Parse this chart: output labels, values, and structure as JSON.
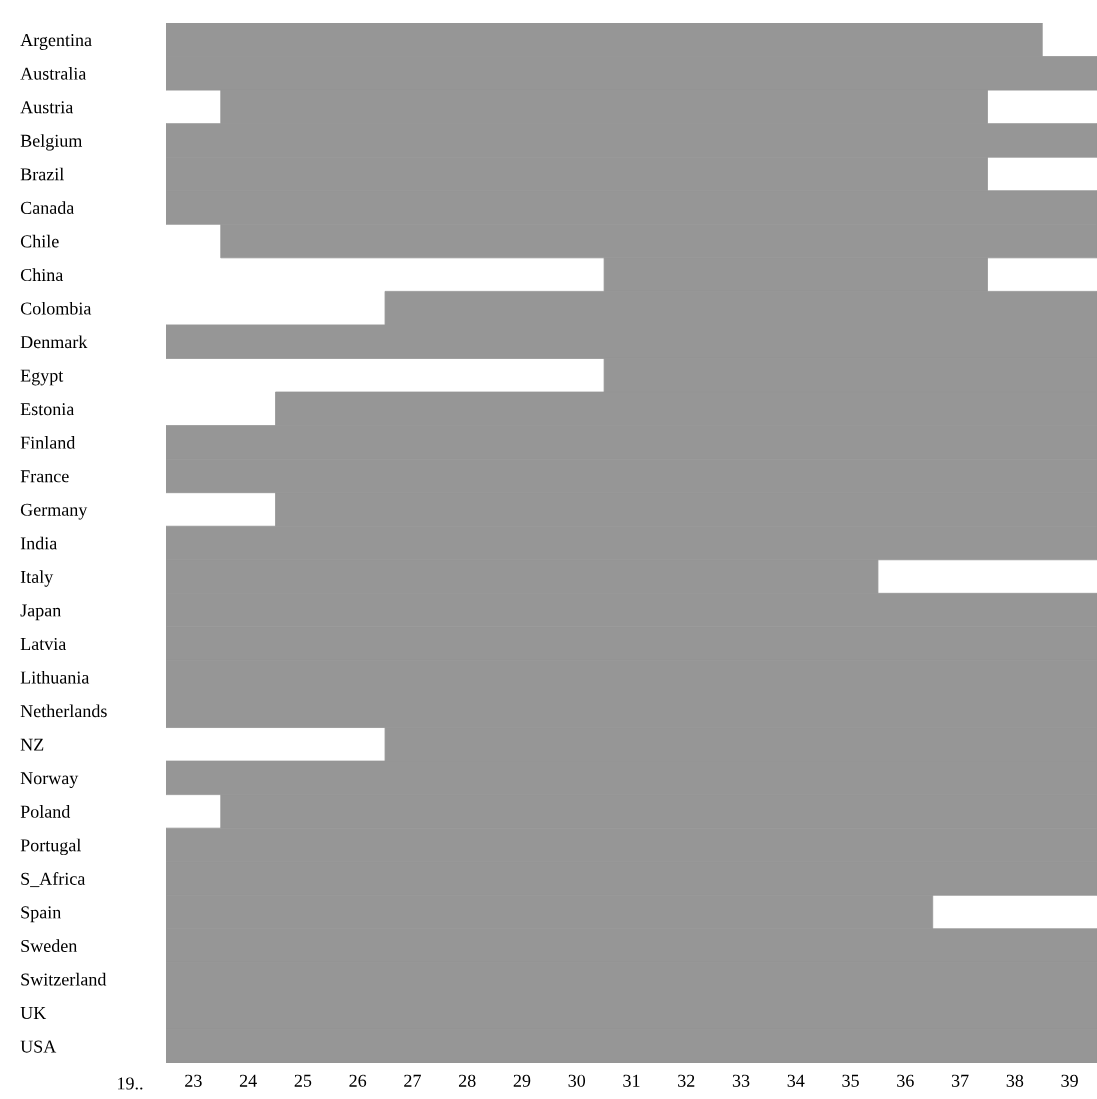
{
  "chart_data": {
    "type": "bar",
    "orientation": "horizontal",
    "color": "#969696",
    "categories": [
      "Argentina",
      "Australia",
      "Austria",
      "Belgium",
      "Brazil",
      "Canada",
      "Chile",
      "China",
      "Colombia",
      "Denmark",
      "Egypt",
      "Estonia",
      "Finland",
      "France",
      "Germany",
      "India",
      "Italy",
      "Japan",
      "Latvia",
      "Lithuania",
      "Netherlands",
      "NZ",
      "Norway",
      "Poland",
      "Portugal",
      "S_Africa",
      "Spain",
      "Sweden",
      "Switzerland",
      "UK",
      "USA"
    ],
    "base": [
      22.5,
      22.5,
      23.5,
      22.5,
      22.5,
      22.5,
      23.5,
      30.5,
      26.5,
      22.5,
      30.5,
      24.5,
      22.5,
      22.5,
      24.5,
      22.5,
      22.5,
      22.5,
      22.5,
      22.5,
      22.5,
      26.5,
      22.5,
      23.5,
      22.5,
      22.5,
      22.5,
      22.5,
      22.5,
      22.5,
      22.5
    ],
    "values": [
      16,
      17,
      14,
      17,
      15,
      17,
      16,
      7,
      13,
      17,
      9,
      15,
      17,
      17,
      15,
      17,
      13,
      17,
      17,
      17,
      17,
      13,
      17,
      16,
      17,
      17,
      14,
      17,
      17,
      17,
      17
    ],
    "xlim": [
      22.5,
      39.5
    ],
    "xticks": [
      23,
      24,
      25,
      26,
      27,
      28,
      29,
      30,
      31,
      32,
      33,
      34,
      35,
      36,
      37,
      38,
      39
    ],
    "annotations": [
      "19.."
    ],
    "grid": false,
    "legend": false
  }
}
